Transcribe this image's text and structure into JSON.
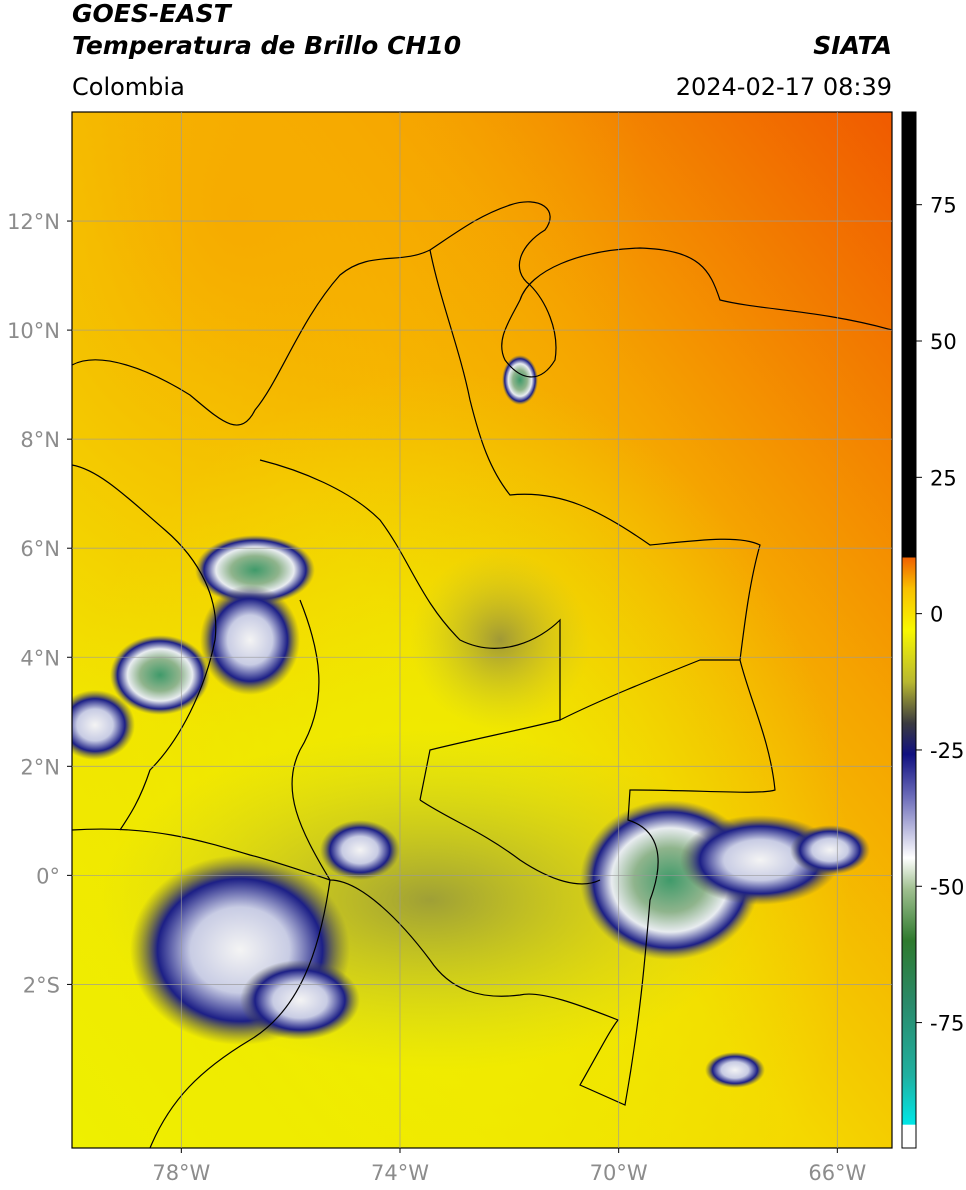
{
  "header": {
    "title": "GOES-EAST",
    "subtitle": "Temperatura de Brillo CH10",
    "source": "SIATA",
    "region": "Colombia",
    "datetime": "2024-02-17 08:39"
  },
  "map": {
    "xlim": [
      -80,
      -65
    ],
    "ylim": [
      -5,
      14
    ],
    "xticks": [
      {
        "value": -78,
        "label": "78°W"
      },
      {
        "value": -74,
        "label": "74°W"
      },
      {
        "value": -70,
        "label": "70°W"
      },
      {
        "value": -66,
        "label": "66°W"
      }
    ],
    "yticks": [
      {
        "value": -2,
        "label": "2°S"
      },
      {
        "value": 0,
        "label": "0°"
      },
      {
        "value": 2,
        "label": "2°N"
      },
      {
        "value": 4,
        "label": "4°N"
      },
      {
        "value": 6,
        "label": "6°N"
      },
      {
        "value": 8,
        "label": "8°N"
      },
      {
        "value": 10,
        "label": "10°N"
      },
      {
        "value": 12,
        "label": "12°N"
      }
    ]
  },
  "colorbar": {
    "lim": [
      -98,
      92
    ],
    "ticks": [
      -75,
      -50,
      -25,
      0,
      25,
      50,
      75
    ]
  }
}
